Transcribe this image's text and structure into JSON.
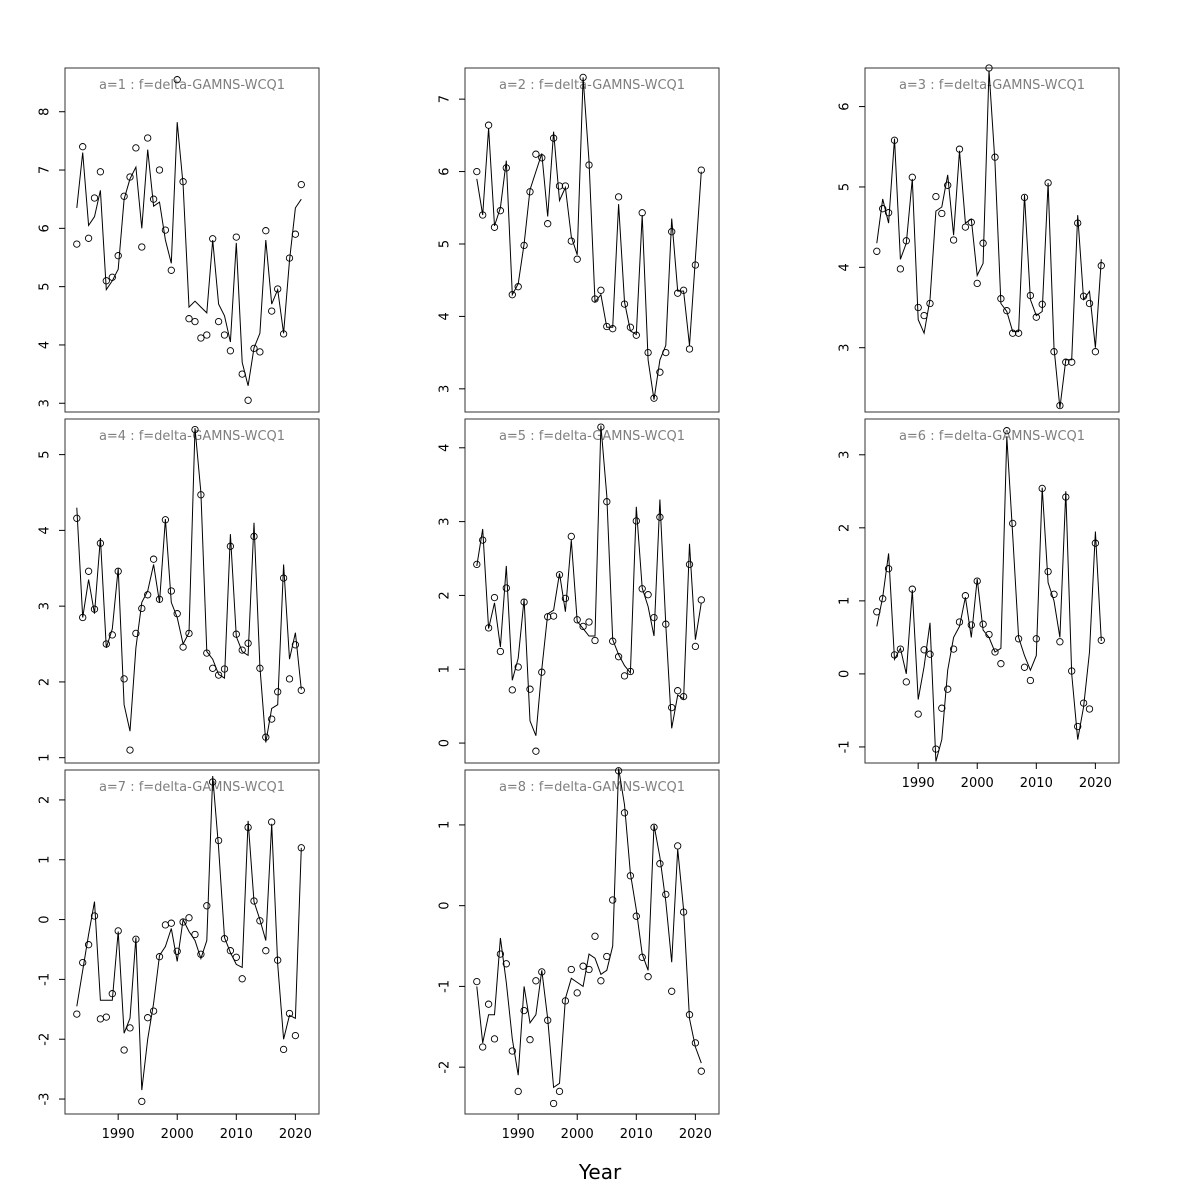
{
  "figure": {
    "xlabel": "Year",
    "x_tick_labels": [
      "1990",
      "2000",
      "2010",
      "2020"
    ]
  },
  "chart_data": [
    {
      "type": "line",
      "title": "a=1  :  f=delta-GAMNS-WCQ1",
      "xlim": [
        1981,
        2024
      ],
      "ylim": [
        2.85,
        8.75
      ],
      "y_ticks": [
        3,
        4,
        5,
        6,
        7,
        8
      ],
      "x": [
        1983,
        1984,
        1985,
        1986,
        1987,
        1988,
        1989,
        1990,
        1991,
        1992,
        1993,
        1994,
        1995,
        1996,
        1997,
        1998,
        1999,
        2000,
        2001,
        2002,
        2003,
        2004,
        2005,
        2006,
        2007,
        2008,
        2009,
        2010,
        2011,
        2012,
        2013,
        2014,
        2015,
        2016,
        2017,
        2018,
        2019,
        2020,
        2021
      ],
      "series": [
        {
          "values": [
            6.35,
            7.3,
            6.05,
            6.2,
            6.65,
            4.95,
            5.1,
            5.3,
            6.5,
            6.85,
            7.05,
            6.0,
            7.35,
            6.38,
            6.45,
            5.8,
            5.4,
            7.82,
            6.75,
            4.65,
            4.75,
            4.65,
            4.55,
            5.8,
            4.7,
            4.5,
            4.05,
            5.75,
            3.7,
            3.3,
            3.95,
            4.2,
            5.8,
            4.7,
            4.95,
            4.2,
            5.45,
            6.35,
            6.5
          ]
        },
        {
          "values": [
            5.73,
            7.4,
            5.83,
            6.52,
            6.97,
            5.1,
            5.16,
            5.53,
            6.55,
            6.88,
            7.38,
            5.68,
            7.55,
            6.5,
            7.0,
            5.97,
            5.28,
            8.55,
            6.8,
            4.45,
            4.4,
            4.12,
            4.17,
            5.82,
            4.4,
            4.17,
            3.9,
            5.85,
            3.5,
            3.05,
            3.94,
            3.88,
            5.96,
            4.58,
            4.96,
            4.19,
            5.49,
            5.9,
            6.75
          ]
        }
      ]
    },
    {
      "type": "line",
      "title": "a=2  :  f=delta-GAMNS-WCQ1",
      "xlim": [
        1981,
        2024
      ],
      "ylim": [
        2.68,
        7.43
      ],
      "y_ticks": [
        3,
        4,
        5,
        6,
        7
      ],
      "x": [
        1983,
        1984,
        1985,
        1986,
        1987,
        1988,
        1989,
        1990,
        1991,
        1992,
        1993,
        1994,
        1995,
        1996,
        1997,
        1998,
        1999,
        2000,
        2001,
        2002,
        2003,
        2004,
        2005,
        2006,
        2007,
        2008,
        2009,
        2010,
        2011,
        2012,
        2013,
        2014,
        2015,
        2016,
        2017,
        2018,
        2019,
        2020,
        2021
      ],
      "series": [
        {
          "values": [
            5.9,
            5.4,
            6.6,
            5.25,
            5.5,
            6.15,
            4.3,
            4.45,
            5.0,
            5.75,
            6.0,
            6.25,
            5.38,
            6.55,
            5.6,
            5.78,
            5.1,
            4.85,
            7.3,
            6.15,
            4.2,
            4.3,
            3.85,
            3.85,
            5.55,
            4.2,
            3.8,
            3.75,
            5.4,
            3.4,
            2.85,
            3.4,
            3.6,
            5.35,
            4.35,
            4.35,
            3.6,
            4.8,
            6.0
          ]
        },
        {
          "values": [
            6.0,
            5.4,
            6.64,
            5.23,
            5.46,
            6.05,
            4.3,
            4.41,
            4.98,
            5.72,
            6.24,
            6.19,
            5.28,
            6.46,
            5.8,
            5.8,
            5.04,
            4.79,
            7.3,
            6.09,
            4.24,
            4.36,
            3.86,
            3.83,
            5.65,
            4.17,
            3.85,
            3.74,
            5.43,
            3.5,
            2.87,
            3.23,
            3.5,
            5.17,
            4.32,
            4.36,
            3.55,
            4.71,
            6.02
          ]
        }
      ]
    },
    {
      "type": "line",
      "title": "a=3  :  f=delta-GAMNS-WCQ1",
      "xlim": [
        1981,
        2024
      ],
      "ylim": [
        2.2,
        6.48
      ],
      "y_ticks": [
        3,
        4,
        5,
        6
      ],
      "x": [
        1983,
        1984,
        1985,
        1986,
        1987,
        1988,
        1989,
        1990,
        1991,
        1992,
        1993,
        1994,
        1995,
        1996,
        1997,
        1998,
        1999,
        2000,
        2001,
        2002,
        2003,
        2004,
        2005,
        2006,
        2007,
        2008,
        2009,
        2010,
        2011,
        2012,
        2013,
        2014,
        2015,
        2016,
        2017,
        2018,
        2019,
        2020,
        2021
      ],
      "series": [
        {
          "values": [
            4.3,
            4.85,
            4.55,
            5.6,
            4.1,
            4.3,
            5.1,
            3.35,
            3.18,
            3.6,
            4.7,
            4.75,
            5.15,
            4.4,
            5.45,
            4.55,
            4.6,
            3.9,
            4.05,
            6.45,
            5.3,
            3.55,
            3.45,
            3.2,
            3.2,
            4.9,
            3.6,
            3.4,
            3.45,
            5.05,
            3.0,
            2.25,
            2.85,
            2.85,
            4.65,
            3.6,
            3.7,
            3.0,
            4.1
          ]
        },
        {
          "values": [
            4.2,
            4.73,
            4.68,
            5.58,
            3.98,
            4.33,
            5.12,
            3.5,
            3.4,
            3.55,
            4.88,
            4.67,
            5.02,
            4.34,
            5.47,
            4.5,
            4.56,
            3.8,
            4.3,
            6.48,
            5.37,
            3.61,
            3.46,
            3.18,
            3.18,
            4.87,
            3.65,
            3.38,
            3.54,
            5.05,
            2.95,
            2.28,
            2.82,
            2.82,
            4.55,
            3.64,
            3.55,
            2.95,
            4.02
          ]
        }
      ]
    },
    {
      "type": "line",
      "title": "a=4  :  f=delta-GAMNS-WCQ1",
      "xlim": [
        1981,
        2024
      ],
      "ylim": [
        0.93,
        5.47
      ],
      "y_ticks": [
        1,
        2,
        3,
        4,
        5
      ],
      "x": [
        1983,
        1984,
        1985,
        1986,
        1987,
        1988,
        1989,
        1990,
        1991,
        1992,
        1993,
        1994,
        1995,
        1996,
        1997,
        1998,
        1999,
        2000,
        2001,
        2002,
        2003,
        2004,
        2005,
        2006,
        2007,
        2008,
        2009,
        2010,
        2011,
        2012,
        2013,
        2014,
        2015,
        2016,
        2017,
        2018,
        2019,
        2020,
        2021
      ],
      "series": [
        {
          "values": [
            4.3,
            2.85,
            3.35,
            2.9,
            3.9,
            2.45,
            2.7,
            3.5,
            1.7,
            1.35,
            2.45,
            3.05,
            3.2,
            3.55,
            3.05,
            4.15,
            3.05,
            2.85,
            2.5,
            2.65,
            5.35,
            4.5,
            2.4,
            2.3,
            2.1,
            2.05,
            3.95,
            2.6,
            2.4,
            2.35,
            4.1,
            2.2,
            1.2,
            1.65,
            1.7,
            3.55,
            2.3,
            2.65,
            1.9
          ]
        },
        {
          "values": [
            4.16,
            2.85,
            3.46,
            2.96,
            3.83,
            2.5,
            2.62,
            3.46,
            2.04,
            1.1,
            2.64,
            2.97,
            3.15,
            3.62,
            3.09,
            4.14,
            3.2,
            2.9,
            2.46,
            2.64,
            5.33,
            4.47,
            2.38,
            2.18,
            2.09,
            2.17,
            3.79,
            2.63,
            2.42,
            2.51,
            3.92,
            2.18,
            1.27,
            1.51,
            1.87,
            3.37,
            2.04,
            2.49,
            1.89
          ]
        }
      ]
    },
    {
      "type": "line",
      "title": "a=5  :  f=delta-GAMNS-WCQ1",
      "xlim": [
        1981,
        2024
      ],
      "ylim": [
        -0.27,
        4.39
      ],
      "y_ticks": [
        0,
        1,
        2,
        3,
        4
      ],
      "x": [
        1983,
        1984,
        1985,
        1986,
        1987,
        1988,
        1989,
        1990,
        1991,
        1992,
        1993,
        1994,
        1995,
        1996,
        1997,
        1998,
        1999,
        2000,
        2001,
        2002,
        2003,
        2004,
        2005,
        2006,
        2007,
        2008,
        2009,
        2010,
        2011,
        2012,
        2013,
        2014,
        2015,
        2016,
        2017,
        2018,
        2019,
        2020,
        2021
      ],
      "series": [
        {
          "values": [
            2.4,
            2.9,
            1.55,
            1.9,
            1.3,
            2.4,
            0.85,
            1.15,
            1.95,
            0.3,
            0.1,
            1.0,
            1.75,
            1.8,
            2.3,
            1.78,
            2.75,
            1.65,
            1.55,
            1.45,
            1.45,
            4.3,
            3.35,
            1.4,
            1.2,
            1.05,
            0.95,
            3.2,
            2.1,
            1.85,
            1.45,
            3.3,
            1.6,
            0.2,
            0.65,
            0.6,
            2.7,
            1.4,
            1.9
          ]
        },
        {
          "values": [
            2.42,
            2.75,
            1.56,
            1.97,
            1.24,
            2.1,
            0.72,
            1.03,
            1.91,
            0.73,
            -0.11,
            0.96,
            1.71,
            1.72,
            2.28,
            1.96,
            2.8,
            1.67,
            1.58,
            1.64,
            1.39,
            4.28,
            3.27,
            1.38,
            1.17,
            0.91,
            0.97,
            3.01,
            2.09,
            2.01,
            1.7,
            3.06,
            1.61,
            0.48,
            0.71,
            0.63,
            2.42,
            1.31,
            1.94
          ]
        }
      ]
    },
    {
      "type": "line",
      "title": "a=6  :  f=delta-GAMNS-WCQ1",
      "xlim": [
        1981,
        2024
      ],
      "ylim": [
        -1.22,
        3.49
      ],
      "y_ticks": [
        -1,
        0,
        1,
        2,
        3
      ],
      "x": [
        1983,
        1984,
        1985,
        1986,
        1987,
        1988,
        1989,
        1990,
        1991,
        1992,
        1993,
        1994,
        1995,
        1996,
        1997,
        1998,
        1999,
        2000,
        2001,
        2002,
        2003,
        2004,
        2005,
        2006,
        2007,
        2008,
        2009,
        2010,
        2011,
        2012,
        2013,
        2014,
        2015,
        2016,
        2017,
        2018,
        2019,
        2020,
        2021
      ],
      "series": [
        {
          "values": [
            0.65,
            1.05,
            1.65,
            0.2,
            0.35,
            0.0,
            1.15,
            -0.35,
            0.1,
            0.7,
            -1.2,
            -0.9,
            0.05,
            0.5,
            0.65,
            1.05,
            0.5,
            1.3,
            0.6,
            0.5,
            0.3,
            0.35,
            3.25,
            1.9,
            0.5,
            0.25,
            0.05,
            0.25,
            2.55,
            1.25,
            1.0,
            0.5,
            2.5,
            0.0,
            -0.9,
            -0.45,
            0.3,
            1.95,
            0.45
          ]
        },
        {
          "values": [
            0.85,
            1.03,
            1.44,
            0.26,
            0.34,
            -0.11,
            1.16,
            -0.55,
            0.33,
            0.27,
            -1.03,
            -0.47,
            -0.21,
            0.34,
            0.71,
            1.07,
            0.67,
            1.27,
            0.68,
            0.54,
            0.3,
            0.14,
            3.33,
            2.06,
            0.48,
            0.09,
            -0.09,
            0.48,
            2.54,
            1.4,
            1.09,
            0.44,
            2.42,
            0.04,
            -0.72,
            -0.4,
            -0.48,
            1.79,
            0.46
          ]
        }
      ]
    },
    {
      "type": "line",
      "title": "a=7  :  f=delta-GAMNS-WCQ1",
      "xlim": [
        1981,
        2024
      ],
      "ylim": [
        -3.25,
        2.5
      ],
      "y_ticks": [
        -3,
        -2,
        -1,
        0,
        1,
        2
      ],
      "x": [
        1983,
        1984,
        1985,
        1986,
        1987,
        1988,
        1989,
        1990,
        1991,
        1992,
        1993,
        1994,
        1995,
        1996,
        1997,
        1998,
        1999,
        2000,
        2001,
        2002,
        2003,
        2004,
        2005,
        2006,
        2007,
        2008,
        2009,
        2010,
        2011,
        2012,
        2013,
        2014,
        2015,
        2016,
        2017,
        2018,
        2019,
        2020,
        2021
      ],
      "series": [
        {
          "values": [
            -1.45,
            -0.85,
            -0.25,
            0.3,
            -1.35,
            -1.35,
            -1.35,
            -0.2,
            -1.9,
            -1.65,
            -0.3,
            -2.85,
            -2.0,
            -1.4,
            -0.6,
            -0.45,
            -0.15,
            -0.7,
            0.0,
            -0.2,
            -0.35,
            -0.65,
            -0.35,
            2.4,
            1.2,
            -0.3,
            -0.55,
            -0.75,
            -0.8,
            1.65,
            0.3,
            0.0,
            -0.35,
            1.6,
            -0.75,
            -2.0,
            -1.6,
            -1.65,
            1.2
          ]
        },
        {
          "values": [
            -1.58,
            -0.72,
            -0.42,
            0.06,
            -1.66,
            -1.63,
            -1.24,
            -0.19,
            -2.18,
            -1.81,
            -0.33,
            -3.04,
            -1.64,
            -1.53,
            -0.62,
            -0.09,
            -0.06,
            -0.53,
            -0.04,
            0.03,
            -0.25,
            -0.58,
            0.23,
            2.3,
            1.32,
            -0.32,
            -0.52,
            -0.63,
            -0.99,
            1.54,
            0.31,
            -0.02,
            -0.52,
            1.63,
            -0.68,
            -2.17,
            -1.57,
            -1.94,
            1.2
          ]
        }
      ]
    },
    {
      "type": "line",
      "title": "a=8  :  f=delta-GAMNS-WCQ1",
      "xlim": [
        1981,
        2024
      ],
      "ylim": [
        -2.58,
        1.68
      ],
      "y_ticks": [
        -2,
        -1,
        0,
        1
      ],
      "x": [
        1983,
        1984,
        1985,
        1986,
        1987,
        1988,
        1989,
        1990,
        1991,
        1992,
        1993,
        1994,
        1995,
        1996,
        1997,
        1998,
        1999,
        2000,
        2001,
        2002,
        2003,
        2004,
        2005,
        2006,
        2007,
        2008,
        2009,
        2010,
        2011,
        2012,
        2013,
        2014,
        2015,
        2016,
        2017,
        2018,
        2019,
        2020,
        2021
      ],
      "series": [
        {
          "values": [
            -1.0,
            -1.7,
            -1.35,
            -1.35,
            -0.4,
            -0.95,
            -1.65,
            -2.1,
            -1.0,
            -1.45,
            -1.35,
            -0.8,
            -1.4,
            -2.25,
            -2.2,
            -1.15,
            -0.9,
            -0.95,
            -1.0,
            -0.6,
            -0.65,
            -0.85,
            -0.8,
            -0.5,
            1.7,
            1.25,
            0.4,
            -0.05,
            -0.6,
            -0.8,
            1.0,
            0.6,
            0.05,
            -0.7,
            0.7,
            -0.05,
            -1.4,
            -1.75,
            -1.95
          ]
        },
        {
          "values": [
            -0.94,
            -1.75,
            -1.22,
            -1.65,
            -0.6,
            -0.72,
            -1.8,
            -2.3,
            -1.3,
            -1.66,
            -0.93,
            -0.82,
            -1.42,
            -2.45,
            -2.3,
            -1.18,
            -0.79,
            -1.08,
            -0.75,
            -0.79,
            -0.38,
            -0.93,
            -0.63,
            0.07,
            1.67,
            1.15,
            0.37,
            -0.13,
            -0.64,
            -0.88,
            0.97,
            0.52,
            0.14,
            -1.06,
            0.74,
            -0.08,
            -1.35,
            -1.7,
            -2.05
          ]
        }
      ]
    }
  ]
}
